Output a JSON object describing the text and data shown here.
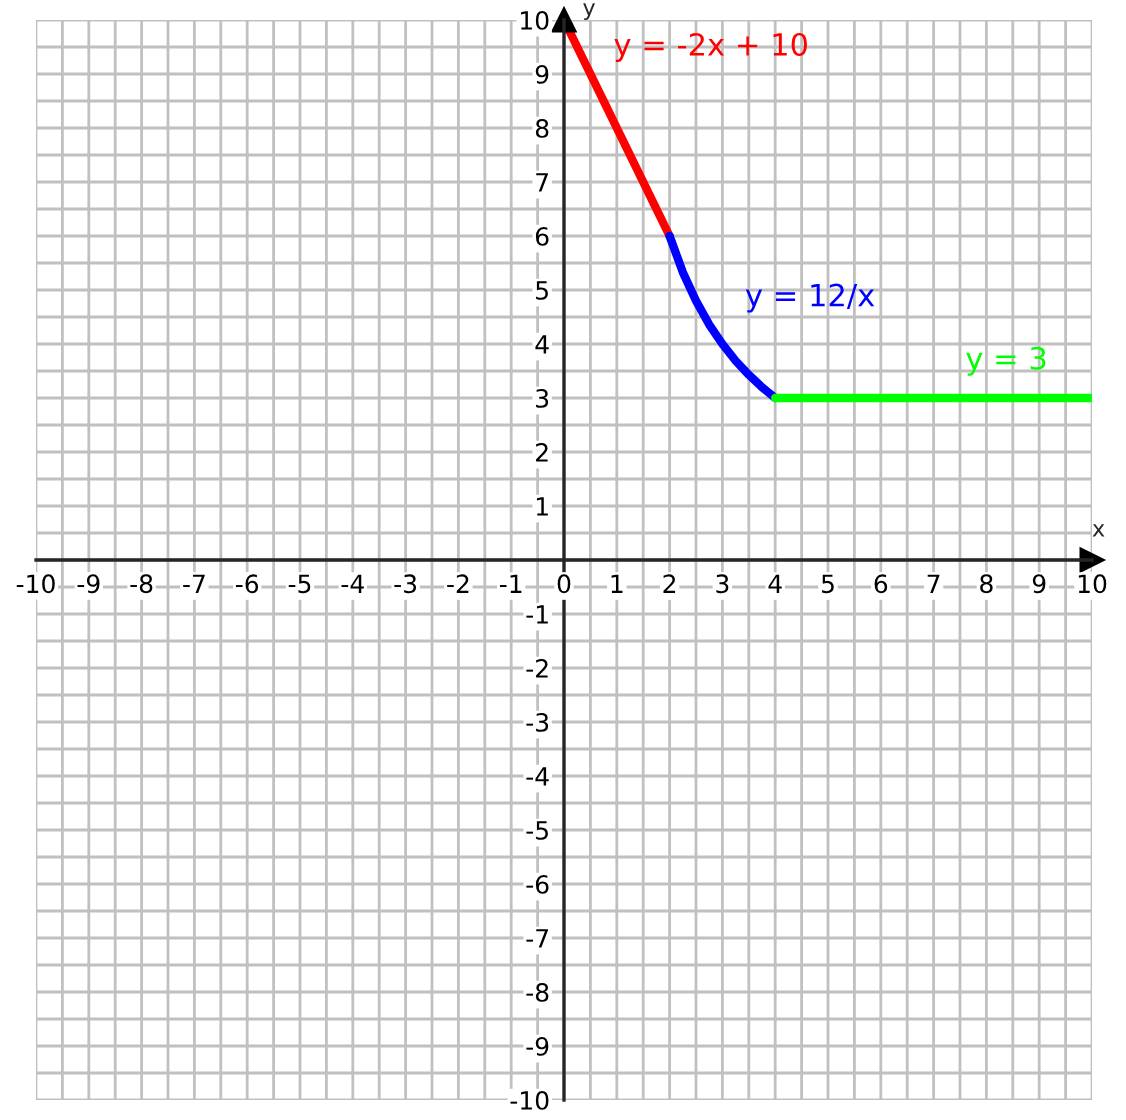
{
  "chart_data": {
    "type": "line",
    "xlabel": "x",
    "ylabel": "y",
    "xlim": [
      -10,
      10
    ],
    "ylim": [
      -10,
      10
    ],
    "xticks": [
      -10,
      {
        "value": -9.5,
        "label": null
      },
      -9,
      {
        "value": -8.5,
        "label": null
      },
      -8,
      {
        "value": -7.5,
        "label": null
      },
      -7,
      {
        "value": -6.5,
        "label": null
      },
      -6,
      {
        "value": -5.5,
        "label": null
      },
      -5,
      {
        "value": -4.5,
        "label": null
      },
      -4,
      {
        "value": -3.5,
        "label": null
      },
      -3,
      {
        "value": -2.5,
        "label": null
      },
      -2,
      {
        "value": -1.5,
        "label": null
      },
      -1,
      {
        "value": -0.5,
        "label": null
      },
      0,
      {
        "value": 0.5,
        "label": null
      },
      1,
      {
        "value": 1.5,
        "label": null
      },
      2,
      {
        "value": 2.5,
        "label": null
      },
      3,
      {
        "value": 3.5,
        "label": null
      },
      4,
      {
        "value": 4.5,
        "label": null
      },
      5,
      {
        "value": 5.5,
        "label": null
      },
      6,
      {
        "value": 6.5,
        "label": null
      },
      7,
      {
        "value": 7.5,
        "label": null
      },
      8,
      {
        "value": 8.5,
        "label": null
      },
      9,
      {
        "value": 9.5,
        "label": null
      },
      10
    ],
    "yticks": [
      -10,
      {
        "value": -9.5,
        "label": null
      },
      -9,
      {
        "value": -8.5,
        "label": null
      },
      -8,
      {
        "value": -7.5,
        "label": null
      },
      -7,
      {
        "value": -6.5,
        "label": null
      },
      -6,
      {
        "value": -5.5,
        "label": null
      },
      -5,
      {
        "value": -4.5,
        "label": null
      },
      -4,
      {
        "value": -3.5,
        "label": null
      },
      -3,
      {
        "value": -2.5,
        "label": null
      },
      -2,
      {
        "value": -1.5,
        "label": null
      },
      -1,
      {
        "value": -0.5,
        "label": null
      },
      {
        "value": 0,
        "label": null
      },
      {
        "value": 0.5,
        "label": null
      },
      1,
      {
        "value": 1.5,
        "label": null
      },
      2,
      {
        "value": 2.5,
        "label": null
      },
      3,
      {
        "value": 3.5,
        "label": null
      },
      4,
      {
        "value": 4.5,
        "label": null
      },
      5,
      {
        "value": 5.5,
        "label": null
      },
      6,
      {
        "value": 6.5,
        "label": null
      },
      7,
      {
        "value": 7.5,
        "label": null
      },
      8,
      {
        "value": 8.5,
        "label": null
      },
      9,
      {
        "value": 9.5,
        "label": null
      },
      10
    ],
    "grid": true,
    "marker": "none",
    "line_style": "solid",
    "series": [
      {
        "color": "#ff0000",
        "x": [
          0,
          2
        ],
        "values": [
          10,
          6
        ]
      },
      {
        "color": "#0000ff",
        "x": [
          2,
          2.25,
          2.5,
          2.75,
          3,
          3.25,
          3.5,
          3.75,
          4
        ],
        "values": [
          6,
          5.33,
          4.8,
          4.36,
          4,
          3.69,
          3.43,
          3.2,
          3
        ]
      },
      {
        "color": "#00ff00",
        "x": [
          4,
          10
        ],
        "values": [
          3,
          3
        ]
      }
    ],
    "annotations": [
      "y = -2x + 10",
      "y = 12/x",
      "y = 3"
    ]
  }
}
